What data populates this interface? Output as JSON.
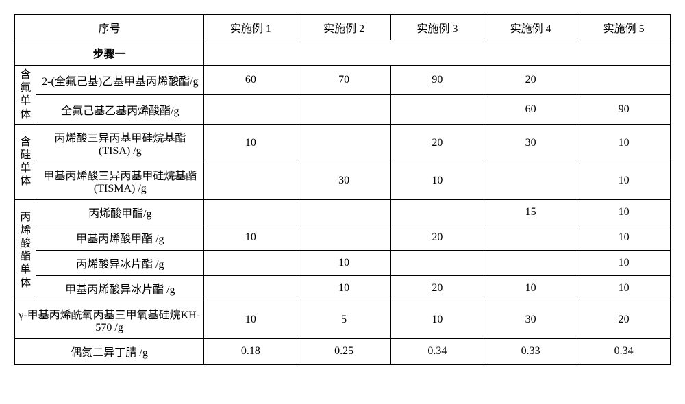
{
  "header": {
    "seq": "序号",
    "cols": [
      "实施例 1",
      "实施例 2",
      "实施例 3",
      "实施例 4",
      "实施例 5"
    ]
  },
  "step1": "步骤一",
  "groups": {
    "g1": {
      "label": "含氟单体"
    },
    "g2": {
      "label": "含硅单体"
    },
    "g3": {
      "label": "丙烯酸酯单体"
    }
  },
  "rows": {
    "r1": {
      "label": "2-(全氟己基)乙基甲基丙烯酸酯/g",
      "v": [
        "60",
        "70",
        "90",
        "20",
        ""
      ]
    },
    "r2": {
      "label": "全氟己基乙基丙烯酸酯/g",
      "v": [
        "",
        "",
        "",
        "60",
        "90"
      ]
    },
    "r3": {
      "label": "丙烯酸三异丙基甲硅烷基酯(TISA) /g",
      "v": [
        "10",
        "",
        "20",
        "30",
        "10"
      ]
    },
    "r4": {
      "label": "甲基丙烯酸三异丙基甲硅烷基酯(TISMA) /g",
      "v": [
        "",
        "30",
        "10",
        "",
        "10"
      ]
    },
    "r5": {
      "label": "丙烯酸甲酯/g",
      "v": [
        "",
        "",
        "",
        "15",
        "10"
      ]
    },
    "r6": {
      "label": "甲基丙烯酸甲酯 /g",
      "v": [
        "10",
        "",
        "20",
        "",
        "10"
      ]
    },
    "r7": {
      "label": "丙烯酸异冰片酯 /g",
      "v": [
        "",
        "10",
        "",
        "",
        "10"
      ]
    },
    "r8": {
      "label": "甲基丙烯酸异冰片酯 /g",
      "v": [
        "",
        "10",
        "20",
        "10",
        "10"
      ]
    },
    "r9": {
      "label": "γ-甲基丙烯酰氧丙基三甲氧基硅烷KH-570 /g",
      "v": [
        "10",
        "5",
        "10",
        "30",
        "20"
      ]
    },
    "r10": {
      "label": "偶氮二异丁腈 /g",
      "v": [
        "0.18",
        "0.25",
        "0.34",
        "0.33",
        "0.34"
      ]
    }
  }
}
